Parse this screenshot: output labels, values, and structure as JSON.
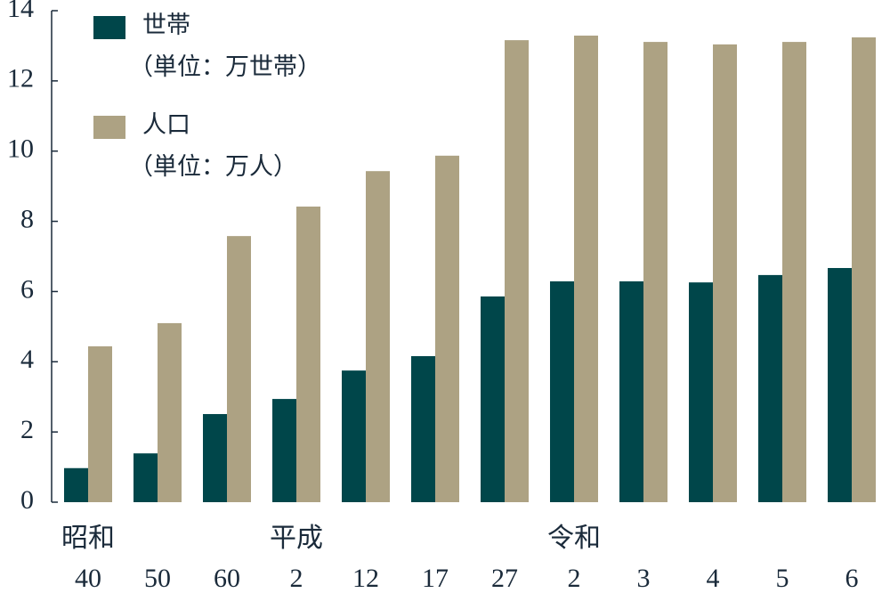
{
  "chart_data": {
    "type": "bar",
    "categories": [
      "40",
      "50",
      "60",
      "2",
      "12",
      "17",
      "27",
      "2",
      "3",
      "4",
      "5",
      "6"
    ],
    "category_groups": [
      "昭和",
      null,
      null,
      "平成",
      null,
      null,
      null,
      "令和",
      null,
      null,
      null,
      null
    ],
    "series": [
      {
        "name": "世帯",
        "unit": "（単位：万世帯）",
        "color": "#00464a",
        "values": [
          0.97,
          1.39,
          2.51,
          2.94,
          3.75,
          4.16,
          5.86,
          6.29,
          6.29,
          6.26,
          6.47,
          6.67
        ]
      },
      {
        "name": "人口",
        "unit": "（単位：万人）",
        "color": "#ada283",
        "values": [
          4.44,
          5.1,
          7.58,
          8.42,
          9.43,
          9.87,
          13.16,
          13.29,
          13.11,
          13.04,
          13.11,
          13.24
        ]
      }
    ],
    "ylim": [
      0,
      14
    ],
    "yticks": [
      0,
      2,
      4,
      6,
      8,
      10,
      12,
      14
    ],
    "grid": false,
    "legend": "top-left"
  }
}
